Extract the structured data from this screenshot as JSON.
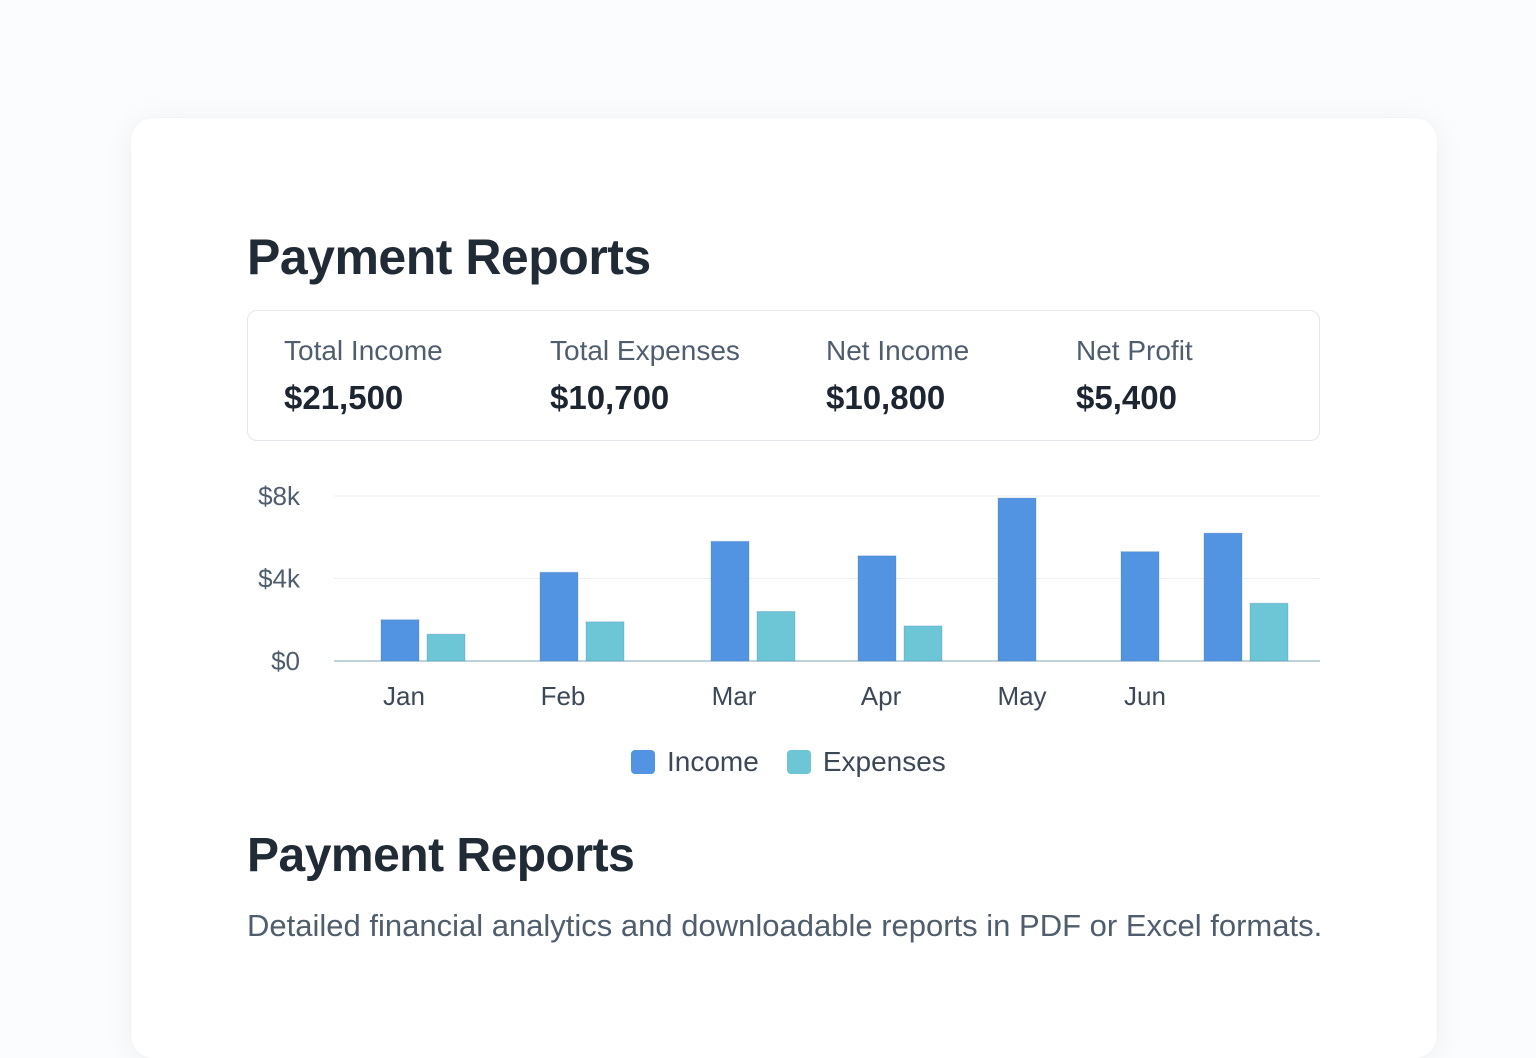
{
  "page": {
    "title": "Payment Reports",
    "section_title": "Payment Reports",
    "description": "Detailed financial analytics and downloadable reports in PDF or Excel formats."
  },
  "stats": [
    {
      "label": "Total Income",
      "value": "$21,500"
    },
    {
      "label": "Total Expenses",
      "value": "$10,700"
    },
    {
      "label": "Net Income",
      "value": "$10,800"
    },
    {
      "label": "Net Profit",
      "value": "$5,400"
    }
  ],
  "legend": [
    {
      "label": "Income",
      "color": "#5294e2"
    },
    {
      "label": "Expenses",
      "color": "#6cc6d6"
    }
  ],
  "chart_data": {
    "type": "bar",
    "title": "",
    "xlabel": "",
    "ylabel": "",
    "ylim": [
      0,
      8000
    ],
    "y_ticks": [
      {
        "value": 0,
        "label": "$0"
      },
      {
        "value": 4000,
        "label": "$4k"
      },
      {
        "value": 8000,
        "label": "$8k"
      }
    ],
    "grid": true,
    "legend_position": "bottom-center",
    "categories": [
      "Jan",
      "Feb",
      "Mar",
      "Apr",
      "May",
      "Jun",
      ""
    ],
    "series": [
      {
        "name": "Income",
        "color": "#5294e2",
        "values": [
          2000,
          4300,
          5800,
          5100,
          7900,
          5300,
          6200
        ]
      },
      {
        "name": "Expenses",
        "color": "#6cc6d6",
        "values": [
          1300,
          1900,
          2400,
          1700,
          null,
          null,
          2800
        ]
      }
    ]
  }
}
